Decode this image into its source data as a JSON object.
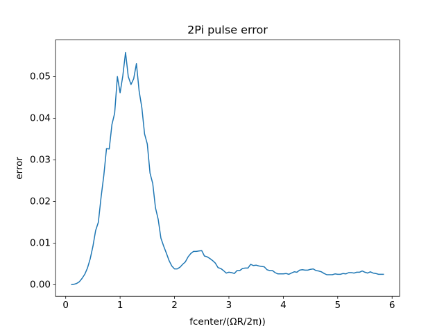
{
  "chart_data": {
    "type": "line",
    "title": "2Pi pulse error",
    "xlabel": "fcenter/(ΩR/2π))",
    "ylabel": "error",
    "x": [
      0.1,
      0.15,
      0.2,
      0.25,
      0.3,
      0.35,
      0.4,
      0.45,
      0.5,
      0.55,
      0.6,
      0.65,
      0.7,
      0.75,
      0.8,
      0.85,
      0.9,
      0.95,
      1.0,
      1.05,
      1.1,
      1.15,
      1.2,
      1.25,
      1.3,
      1.35,
      1.4,
      1.45,
      1.5,
      1.55,
      1.6,
      1.65,
      1.7,
      1.75,
      1.8,
      1.85,
      1.9,
      1.95,
      2.0,
      2.05,
      2.1,
      2.15,
      2.2,
      2.25,
      2.3,
      2.35,
      2.4,
      2.45,
      2.5,
      2.55,
      2.6,
      2.65,
      2.7,
      2.75,
      2.8,
      2.85,
      2.9,
      2.95,
      3.0,
      3.05,
      3.1,
      3.15,
      3.2,
      3.25,
      3.3,
      3.35,
      3.4,
      3.45,
      3.5,
      3.55,
      3.6,
      3.65,
      3.7,
      3.75,
      3.8,
      3.85,
      3.9,
      3.95,
      4.0,
      4.05,
      4.1,
      4.15,
      4.2,
      4.25,
      4.3,
      4.35,
      4.4,
      4.45,
      4.5,
      4.55,
      4.6,
      4.65,
      4.7,
      4.75,
      4.8,
      4.85,
      4.9,
      4.95,
      5.0,
      5.05,
      5.1,
      5.15,
      5.2,
      5.25,
      5.3,
      5.35,
      5.4,
      5.45,
      5.5,
      5.55,
      5.6,
      5.65,
      5.7,
      5.75,
      5.8,
      5.85
    ],
    "series": [
      {
        "name": "error",
        "color": "#1f77b4",
        "values": [
          0.0,
          0.0001,
          0.0003,
          0.0007,
          0.0015,
          0.0025,
          0.004,
          0.0062,
          0.0092,
          0.013,
          0.015,
          0.021,
          0.0262,
          0.0327,
          0.0326,
          0.0385,
          0.0412,
          0.05,
          0.0461,
          0.0502,
          0.0558,
          0.05,
          0.0481,
          0.0495,
          0.0531,
          0.0465,
          0.0425,
          0.0362,
          0.0338,
          0.0268,
          0.0243,
          0.0185,
          0.0157,
          0.0112,
          0.0093,
          0.0076,
          0.0058,
          0.0045,
          0.0038,
          0.0038,
          0.0042,
          0.0049,
          0.0055,
          0.0067,
          0.0075,
          0.008,
          0.008,
          0.0081,
          0.0082,
          0.0069,
          0.0067,
          0.0063,
          0.0058,
          0.0052,
          0.0041,
          0.0039,
          0.0034,
          0.0028,
          0.003,
          0.0029,
          0.0027,
          0.0034,
          0.0034,
          0.0039,
          0.004,
          0.004,
          0.0049,
          0.0046,
          0.0047,
          0.0045,
          0.0044,
          0.0043,
          0.0036,
          0.0034,
          0.0034,
          0.0029,
          0.0026,
          0.0026,
          0.0026,
          0.0027,
          0.0025,
          0.0028,
          0.0031,
          0.003,
          0.0035,
          0.0036,
          0.0035,
          0.0035,
          0.0037,
          0.0038,
          0.0034,
          0.0033,
          0.0031,
          0.0027,
          0.0024,
          0.0024,
          0.0024,
          0.0026,
          0.0025,
          0.0025,
          0.0027,
          0.0026,
          0.0029,
          0.0029,
          0.0028,
          0.003,
          0.003,
          0.0033,
          0.003,
          0.0028,
          0.0031,
          0.0028,
          0.0027,
          0.0025,
          0.0025,
          0.0025
        ]
      }
    ],
    "xlim": [
      -0.1875,
      6.1375
    ],
    "ylim": [
      -0.0028,
      0.0588
    ],
    "xticks": [
      0,
      1,
      2,
      3,
      4,
      5,
      6
    ],
    "yticks": [
      {
        "value": 0,
        "label": "0.00"
      },
      {
        "value": 0.01,
        "label": "0.01"
      },
      {
        "value": 0.02,
        "label": "0.02"
      },
      {
        "value": 0.03,
        "label": "0.03"
      },
      {
        "value": 0.04,
        "label": "0.04"
      },
      {
        "value": 0.05,
        "label": "0.05"
      }
    ]
  }
}
